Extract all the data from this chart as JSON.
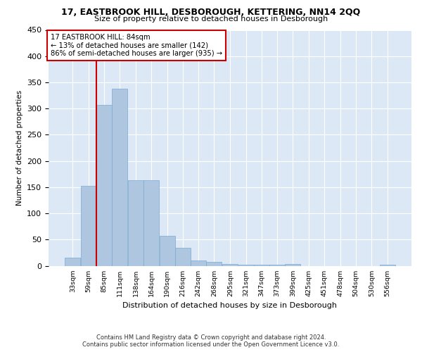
{
  "title1": "17, EASTBROOK HILL, DESBOROUGH, KETTERING, NN14 2QQ",
  "title2": "Size of property relative to detached houses in Desborough",
  "xlabel": "Distribution of detached houses by size in Desborough",
  "ylabel": "Number of detached properties",
  "footnote1": "Contains HM Land Registry data © Crown copyright and database right 2024.",
  "footnote2": "Contains public sector information licensed under the Open Government Licence v3.0.",
  "annotation_line1": "17 EASTBROOK HILL: 84sqm",
  "annotation_line2": "← 13% of detached houses are smaller (142)",
  "annotation_line3": "86% of semi-detached houses are larger (935) →",
  "bar_color": "#aec6e0",
  "bar_edge_color": "#7aaacf",
  "vline_color": "#cc0000",
  "vline_x": 85,
  "categories": [
    "33sqm",
    "59sqm",
    "85sqm",
    "111sqm",
    "138sqm",
    "164sqm",
    "190sqm",
    "216sqm",
    "242sqm",
    "268sqm",
    "295sqm",
    "321sqm",
    "347sqm",
    "373sqm",
    "399sqm",
    "425sqm",
    "451sqm",
    "478sqm",
    "504sqm",
    "530sqm",
    "556sqm"
  ],
  "bin_edges": [
    33,
    59,
    85,
    111,
    138,
    164,
    190,
    216,
    242,
    268,
    295,
    321,
    347,
    373,
    399,
    425,
    451,
    478,
    504,
    530,
    556
  ],
  "bin_width": 26,
  "values": [
    15,
    152,
    307,
    338,
    163,
    163,
    57,
    34,
    10,
    7,
    4,
    2,
    2,
    2,
    4,
    0,
    0,
    0,
    0,
    0,
    2
  ],
  "ylim": [
    0,
    450
  ],
  "yticks": [
    0,
    50,
    100,
    150,
    200,
    250,
    300,
    350,
    400,
    450
  ],
  "background_color": "#ffffff",
  "plot_bg_color": "#dce8f5"
}
